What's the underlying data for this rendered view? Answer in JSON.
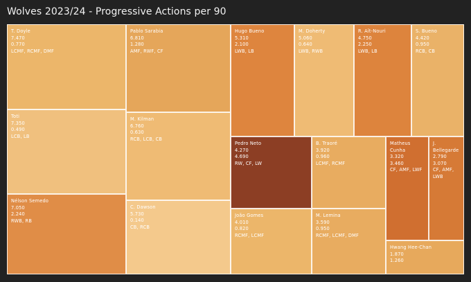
{
  "title": "Wolves 2023/24 - Progressive Actions per 90",
  "chart_data": {
    "type": "treemap",
    "title": "Wolves 2023/24 - Progressive Actions per 90",
    "size_metric": "first value",
    "items": [
      {
        "name": "T. Doyle",
        "lines": [
          "T. Doyle",
          "7.470",
          "0.770",
          "LCMF, RCMF, DMF"
        ],
        "size": 7.47,
        "color": "#ecb66a"
      },
      {
        "name": "Toti",
        "lines": [
          "Toti",
          "7.350",
          "0.490",
          "LCB, LB"
        ],
        "size": 7.35,
        "color": "#f0c07e"
      },
      {
        "name": "Nélson Semedo",
        "lines": [
          "Nélson Semedo",
          "7.050",
          "2.240",
          "RWB, RB"
        ],
        "size": 7.05,
        "color": "#e08d47"
      },
      {
        "name": "Pablo Sarabia",
        "lines": [
          "Pablo Sarabia",
          "6.810",
          "1.280",
          "AMF, RWF, CF"
        ],
        "size": 6.81,
        "color": "#e5a65a"
      },
      {
        "name": "M. Kilman",
        "lines": [
          "M. Kilman",
          "6.760",
          "0.630",
          "RCB, LCB, CB"
        ],
        "size": 6.76,
        "color": "#efbb74"
      },
      {
        "name": "C. Dawson",
        "lines": [
          "C. Dawson",
          "5.730",
          "0.140",
          "CB, RCB"
        ],
        "size": 5.73,
        "color": "#f4c98c"
      },
      {
        "name": "Hugo Bueno",
        "lines": [
          "Hugo Bueno",
          "5.310",
          "2.100",
          "LWB, LB"
        ],
        "size": 5.31,
        "color": "#de853e"
      },
      {
        "name": "M. Doherty",
        "lines": [
          "M. Doherty",
          "5.060",
          "0.640",
          "LWB, RWB"
        ],
        "size": 5.06,
        "color": "#efbb74"
      },
      {
        "name": "R. Aït-Nouri",
        "lines": [
          "R. Aït-Nouri",
          "4.750",
          "2.250",
          "LWB, LB"
        ],
        "size": 4.75,
        "color": "#dd843d"
      },
      {
        "name": "S. Bueno",
        "lines": [
          "S. Bueno",
          "4.420",
          "0.950",
          "RCB, CB"
        ],
        "size": 4.42,
        "color": "#eab268"
      },
      {
        "name": "Pedro Neto",
        "lines": [
          "Pedro Neto",
          "4.270",
          "4.690",
          "RW, CF, LW"
        ],
        "size": 4.27,
        "color": "#8c3e24"
      },
      {
        "name": "João Gomes",
        "lines": [
          "João Gomes",
          "4.010",
          "0.820",
          "RCMF, LCMF"
        ],
        "size": 4.01,
        "color": "#ecb66a"
      },
      {
        "name": "B. Traoré",
        "lines": [
          "B. Traoré",
          "3.920",
          "0.960",
          "LCMF, RCMF"
        ],
        "size": 3.92,
        "color": "#e8ac60"
      },
      {
        "name": "M. Lemina",
        "lines": [
          "M. Lemina",
          "3.590",
          "0.950",
          "RCMF, LCMF, DMF"
        ],
        "size": 3.59,
        "color": "#e8ac60"
      },
      {
        "name": "Matheus Cunha",
        "lines": [
          "Matheus",
          "Cunha",
          "3.320",
          "3.460",
          "CF, AMF, LWF"
        ],
        "size": 3.32,
        "color": "#d06f30"
      },
      {
        "name": "J. Bellegarde",
        "lines": [
          "J.",
          "Bellegarde",
          "2.790",
          "3.070",
          "CF, AMF,",
          "LWB"
        ],
        "size": 2.79,
        "color": "#d67a36"
      },
      {
        "name": "Hwang Hee-Chan",
        "lines": [
          "Hwang Hee-Chan",
          "1.870",
          "1.260"
        ],
        "size": 1.87,
        "color": "#e7a95c"
      }
    ]
  }
}
